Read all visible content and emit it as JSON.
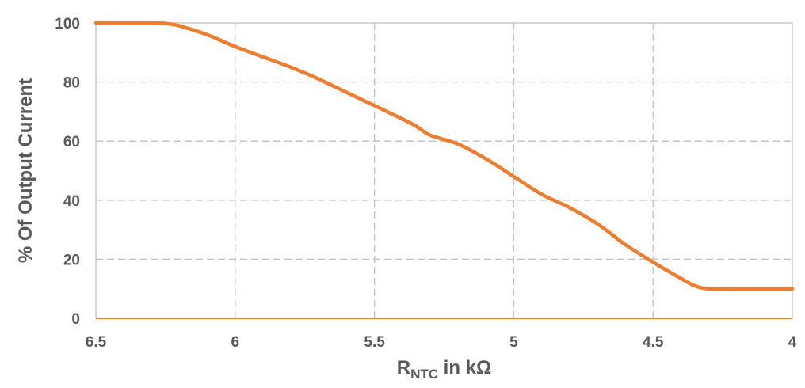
{
  "chart_data": {
    "type": "line",
    "xlabel_main": "R",
    "xlabel_sub": "NTC",
    "xlabel_rest": " in kΩ",
    "ylabel": "% Of Output Current",
    "xlim": [
      6.5,
      4
    ],
    "x_reversed": true,
    "ylim": [
      0,
      100
    ],
    "x_ticks": [
      6.5,
      6,
      5.5,
      5,
      4.5,
      4
    ],
    "x_tick_labels": [
      "6.5",
      "6",
      "5.5",
      "5",
      "4.5",
      "4"
    ],
    "y_ticks": [
      0,
      20,
      40,
      60,
      80,
      100
    ],
    "y_tick_labels": [
      "0",
      "20",
      "40",
      "60",
      "80",
      "100"
    ],
    "grid": true,
    "color": "#ED7D31",
    "series": [
      {
        "x": [
          6.5,
          6.4,
          6.3,
          6.25,
          6.2,
          6.1,
          6.0,
          5.9,
          5.8,
          5.7,
          5.6,
          5.5,
          5.4,
          5.35,
          5.3,
          5.2,
          5.1,
          5.0,
          4.9,
          4.8,
          4.7,
          4.6,
          4.5,
          4.4,
          4.35,
          4.3,
          4.2,
          4.1,
          4.0
        ],
        "y": [
          100,
          100,
          100,
          99.8,
          99,
          96,
          92,
          88.5,
          85,
          81,
          76.5,
          72,
          67.5,
          65,
          62,
          59,
          54,
          48,
          42,
          37.5,
          32,
          25,
          19,
          13.5,
          11,
          10,
          10,
          10,
          10
        ]
      }
    ]
  }
}
